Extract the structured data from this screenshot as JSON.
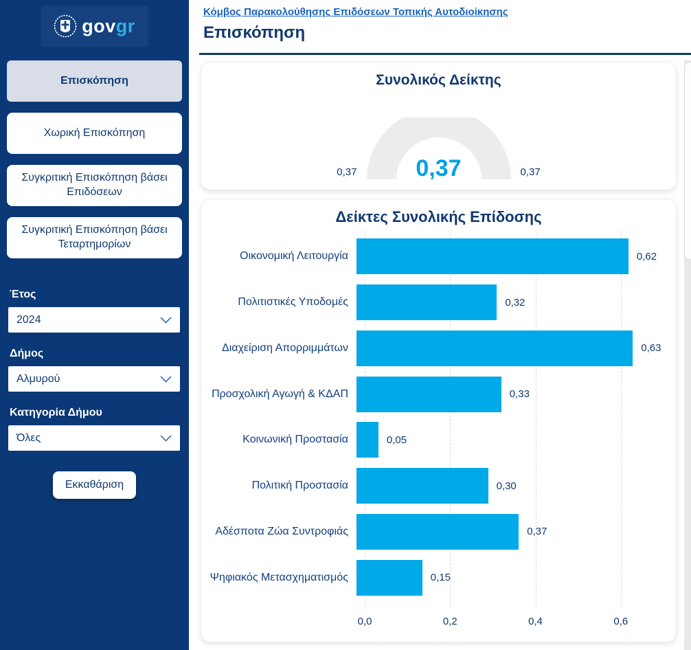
{
  "sidebar": {
    "logo": {
      "text_white": "gov",
      "text_cyan": "gr"
    },
    "nav": [
      {
        "label": "Επισκόπηση",
        "active": true
      },
      {
        "label": "Χωρική Επισκόπηση",
        "active": false
      },
      {
        "label": "Συγκριτική Επισκόπηση βάσει Επιδόσεων",
        "active": false
      },
      {
        "label": "Συγκριτική Επισκόπηση βάσει Τεταρτημορίων",
        "active": false
      }
    ],
    "filters": [
      {
        "label": "Έτος",
        "value": "2024"
      },
      {
        "label": "Δήμος",
        "value": "Αλμυρού"
      },
      {
        "label": "Κατηγορία Δήμου",
        "value": "Όλες"
      }
    ],
    "clear_button_label": "Εκκαθάριση"
  },
  "header": {
    "breadcrumb_link": "Κόμβος Παρακολούθησης Επιδόσεων Τοπικής Αυτοδιοίκησης",
    "page_title": "Επισκόπηση"
  },
  "gauge": {
    "title": "Συνολικός Δείκτης",
    "value": 0.37,
    "value_label": "0,37",
    "min_label": "0,37",
    "max_label": "0,37"
  },
  "chart_data": {
    "type": "bar",
    "orientation": "horizontal",
    "title": "Δείκτες Συνολικής Επίδοσης",
    "categories": [
      "Οικονομική Λειτουργία",
      "Πολιτιστικές Υποδομές",
      "Διαχείριση Απορριμμάτων",
      "Προσχολική Αγωγή & ΚΔΑΠ",
      "Κοινωνική Προστασία",
      "Πολιτική Προστασία",
      "Αδέσποτα Ζώα Συντροφιάς",
      "Ψηφιακός Μετασχηματισμός"
    ],
    "values": [
      0.62,
      0.32,
      0.63,
      0.33,
      0.05,
      0.3,
      0.37,
      0.15
    ],
    "value_labels": [
      "0,62",
      "0,32",
      "0,63",
      "0,33",
      "0,05",
      "0,30",
      "0,37",
      "0,15"
    ],
    "x_ticks": [
      0.0,
      0.2,
      0.4,
      0.6
    ],
    "x_tick_labels": [
      "0,0",
      "0,2",
      "0,4",
      "0,6"
    ],
    "xlim": [
      0,
      0.7
    ],
    "grid": "dashed-vertical",
    "legend": "none",
    "bar_color": "#00a9e8"
  },
  "colors": {
    "sidebar_bg": "#0b3876",
    "accent_cyan": "#00a9e8",
    "navy_text": "#12386e",
    "link_blue": "#1a64b8",
    "active_nav_bg": "#d8dde7",
    "gauge_arc": "#ececec"
  }
}
